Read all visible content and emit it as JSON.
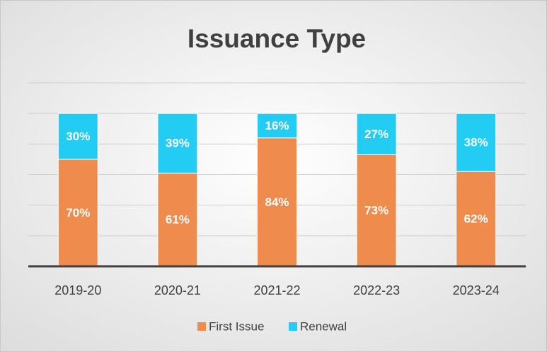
{
  "chart_data": {
    "type": "stacked_bar",
    "title": "Issuance Type",
    "categories": [
      "2019-20",
      "2020-21",
      "2021-22",
      "2022-23",
      "2023-24"
    ],
    "series": [
      {
        "name": "First Issue",
        "color": "#ef8b4c",
        "values": [
          70,
          61,
          84,
          73,
          62
        ],
        "value_labels": [
          "70%",
          "61%",
          "84%",
          "73%",
          "62%"
        ]
      },
      {
        "name": "Renewal",
        "color": "#22ccf3",
        "values": [
          30,
          39,
          16,
          27,
          38
        ],
        "value_labels": [
          "30%",
          "39%",
          "16%",
          "27%",
          "38%"
        ]
      }
    ],
    "ylim": [
      0,
      120
    ],
    "yticks": [
      0,
      20,
      40,
      60,
      80,
      100,
      120
    ],
    "grid": true,
    "legend": "bottom"
  }
}
